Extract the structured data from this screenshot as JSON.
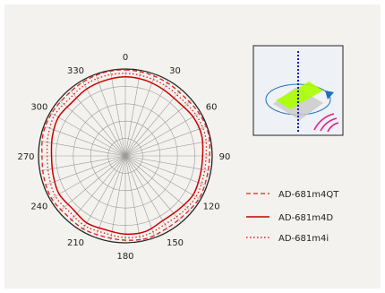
{
  "chart_data": {
    "type": "polar-line",
    "title": "",
    "angular_unit": "degrees",
    "angle_ticks": [
      "0",
      "30",
      "60",
      "90",
      "120",
      "150",
      "180",
      "210",
      "240",
      "270",
      "300",
      "330"
    ],
    "angle_tick_values": [
      0,
      30,
      60,
      90,
      120,
      150,
      180,
      210,
      240,
      270,
      300,
      330
    ],
    "radial_range": [
      0,
      1
    ],
    "radial_rings": 5,
    "spoke_step_deg": 10,
    "grid": true,
    "legend_position": "right",
    "series": [
      {
        "name": "AD-681m4QT",
        "line_style": "dashed",
        "color": "#e02020",
        "angles": [
          0,
          15,
          30,
          45,
          60,
          75,
          90,
          105,
          120,
          135,
          150,
          165,
          180,
          195,
          210,
          225,
          240,
          255,
          270,
          285,
          300,
          315,
          330,
          345
        ],
        "values": [
          0.99,
          0.98,
          0.97,
          0.96,
          0.98,
          0.99,
          0.97,
          0.97,
          0.98,
          0.96,
          0.96,
          0.98,
          0.97,
          0.96,
          0.97,
          0.96,
          0.98,
          0.97,
          0.96,
          0.98,
          0.98,
          0.97,
          0.98,
          0.99
        ]
      },
      {
        "name": "AD-681m4D",
        "line_style": "solid",
        "color": "#cc0000",
        "angles": [
          0,
          15,
          30,
          45,
          60,
          75,
          90,
          105,
          120,
          135,
          150,
          165,
          180,
          195,
          210,
          225,
          240,
          255,
          270,
          285,
          300,
          315,
          330,
          345
        ],
        "values": [
          0.91,
          0.9,
          0.88,
          0.87,
          0.9,
          0.91,
          0.89,
          0.89,
          0.9,
          0.87,
          0.86,
          0.9,
          0.9,
          0.88,
          0.89,
          0.86,
          0.88,
          0.86,
          0.85,
          0.87,
          0.89,
          0.87,
          0.89,
          0.9
        ]
      },
      {
        "name": "AD-681m4i",
        "line_style": "dotted",
        "color": "#e02020",
        "angles": [
          0,
          15,
          30,
          45,
          60,
          75,
          90,
          105,
          120,
          135,
          150,
          165,
          180,
          195,
          210,
          225,
          240,
          255,
          270,
          285,
          300,
          315,
          330,
          345
        ],
        "values": [
          0.95,
          0.94,
          0.93,
          0.92,
          0.94,
          0.95,
          0.93,
          0.93,
          0.94,
          0.92,
          0.91,
          0.94,
          0.94,
          0.92,
          0.93,
          0.91,
          0.93,
          0.91,
          0.9,
          0.92,
          0.94,
          0.92,
          0.94,
          0.95
        ]
      }
    ]
  },
  "inset": {
    "icon": "microphone-pickup-diagram-icon",
    "axis_color": "#1a1ab8",
    "arrow_color": "#1e6fb8",
    "element_color": "#aaff00",
    "sound_wave_color": "#e0208a"
  }
}
